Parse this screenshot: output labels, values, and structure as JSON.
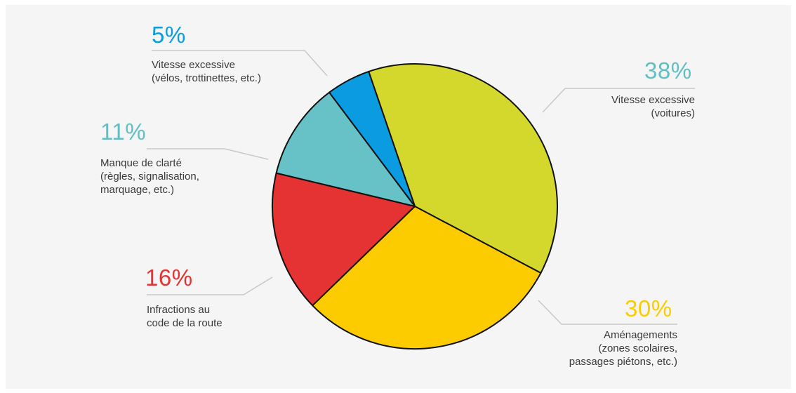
{
  "chart_data": {
    "type": "pie",
    "title": "",
    "slices": [
      {
        "label": "Vitesse excessive\n(voitures)",
        "percent": "38%",
        "value": 38,
        "color": "#d4d82d",
        "label_color": "#5fbfc3"
      },
      {
        "label": "Aménagements\n(zones scolaires,\npassages piétons, etc.)",
        "percent": "30%",
        "value": 30,
        "color": "#fccc00",
        "label_color": "#fccc00"
      },
      {
        "label": "Infractions au\ncode de la route",
        "percent": "16%",
        "value": 16,
        "color": "#e53333",
        "label_color": "#e53333"
      },
      {
        "label": "Manque de clarté\n(règles, signalisation,\nmarquage, etc.)",
        "percent": "11%",
        "value": 11,
        "color": "#66c2c6",
        "label_color": "#5fbfc3"
      },
      {
        "label": "Vitesse excessive\n(vélos,  trottinettes, etc.)",
        "percent": "5%",
        "value": 5,
        "color": "#0a9be0",
        "label_color": "#0a9be0"
      }
    ]
  }
}
